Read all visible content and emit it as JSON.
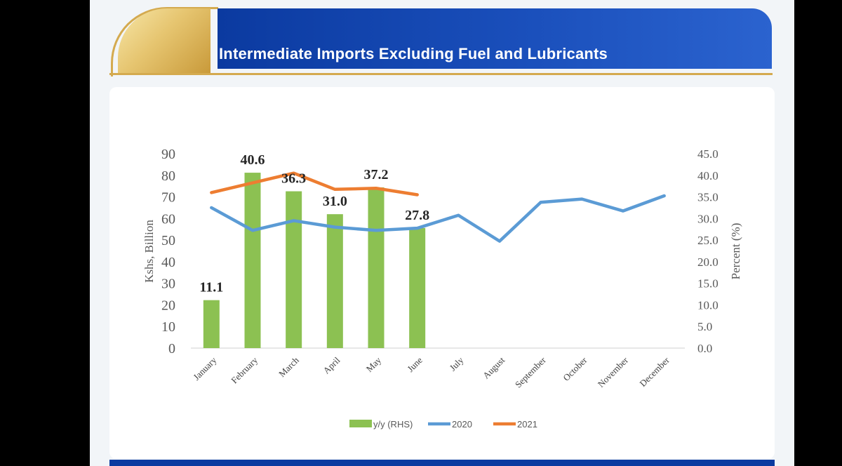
{
  "slide": {
    "title": "Intermediate Imports Excluding Fuel and Lubricants"
  },
  "chart_data": {
    "type": "bar",
    "categories": [
      "January",
      "February",
      "March",
      "April",
      "May",
      "June",
      "July",
      "August",
      "September",
      "October",
      "November",
      "December"
    ],
    "bar_series": {
      "name": "y/y (RHS)",
      "axis": "right",
      "color": "#8cc152",
      "values": [
        11.1,
        40.6,
        36.3,
        31.0,
        37.2,
        27.8
      ],
      "labels": [
        "11.1",
        "40.6",
        "36.3",
        "31.0",
        "37.2",
        "27.8"
      ]
    },
    "line_series": [
      {
        "name": "2020",
        "axis": "left",
        "color": "#5b9bd5",
        "values": [
          65,
          54.5,
          59,
          56,
          54.5,
          55.5,
          61.5,
          49.5,
          67.5,
          69,
          63.5,
          70.5
        ]
      },
      {
        "name": "2021",
        "axis": "left",
        "color": "#ed7d31",
        "values": [
          72,
          76.5,
          81,
          73.5,
          74,
          71
        ]
      }
    ],
    "left_axis": {
      "label": "Kshs, Billion",
      "min": 0,
      "max": 90,
      "ticks": [
        "0",
        "10",
        "20",
        "30",
        "40",
        "50",
        "60",
        "70",
        "80",
        "90"
      ]
    },
    "right_axis": {
      "label": "Percent (%)",
      "min": 0,
      "max": 45,
      "ticks": [
        "0.0",
        "5.0",
        "10.0",
        "15.0",
        "20.0",
        "25.0",
        "30.0",
        "35.0",
        "40.0",
        "45.0"
      ]
    },
    "legend": [
      {
        "label": "y/y (RHS)",
        "color": "#8cc152",
        "kind": "bar"
      },
      {
        "label": "2020",
        "color": "#5b9bd5",
        "kind": "line"
      },
      {
        "label": "2021",
        "color": "#ed7d31",
        "kind": "line"
      }
    ],
    "legend_position": "bottom",
    "grid": false
  }
}
